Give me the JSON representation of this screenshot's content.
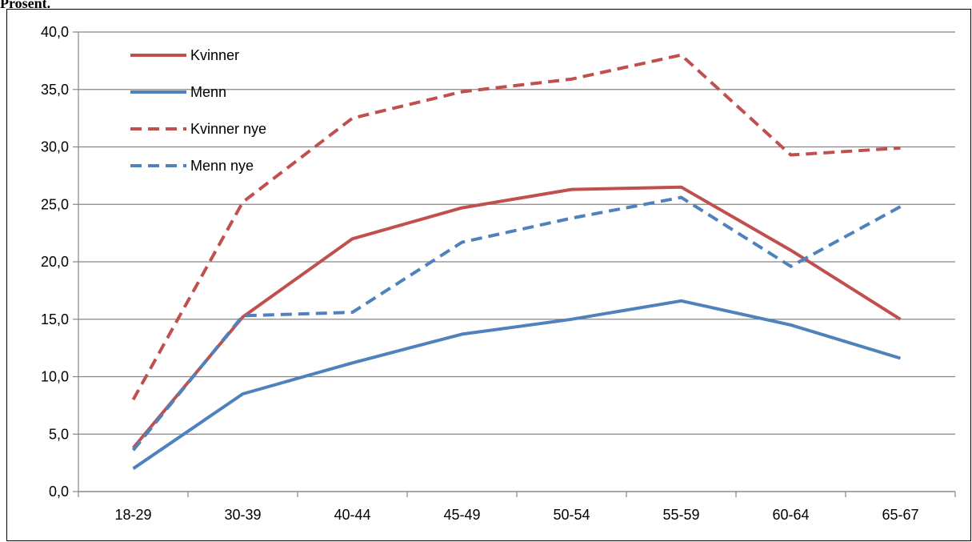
{
  "header": {
    "y_unit_label": "Prosent."
  },
  "colors": {
    "kvinner": "#C0504D",
    "menn": "#4F81BD",
    "grid": "#868686",
    "axis": "#868686"
  },
  "chart_data": {
    "type": "line",
    "title": "",
    "xlabel": "",
    "ylabel": "",
    "categories": [
      "18-29",
      "30-39",
      "40-44",
      "45-49",
      "50-54",
      "55-59",
      "60-64",
      "65-67"
    ],
    "ylim": [
      0,
      40
    ],
    "yticks": [
      "0,0",
      "5,0",
      "10,0",
      "15,0",
      "20,0",
      "25,0",
      "30,0",
      "35,0",
      "40,0"
    ],
    "grid": true,
    "legend_position": "top-left",
    "series": [
      {
        "name": "Kvinner",
        "color": "#C0504D",
        "dash": "solid",
        "values": [
          3.8,
          15.2,
          22.0,
          24.7,
          26.3,
          26.5,
          21.0,
          15.0
        ]
      },
      {
        "name": "Menn",
        "color": "#4F81BD",
        "dash": "solid",
        "values": [
          2.0,
          8.5,
          11.2,
          13.7,
          15.0,
          16.6,
          14.5,
          11.6
        ]
      },
      {
        "name": "Kvinner nye",
        "color": "#C0504D",
        "dash": "dashed",
        "values": [
          8.0,
          25.2,
          32.5,
          34.8,
          35.9,
          38.0,
          29.3,
          29.9
        ]
      },
      {
        "name": "Menn nye",
        "color": "#4F81BD",
        "dash": "dashed",
        "values": [
          3.6,
          15.3,
          15.6,
          21.7,
          23.8,
          25.6,
          19.6,
          24.8
        ]
      }
    ]
  }
}
